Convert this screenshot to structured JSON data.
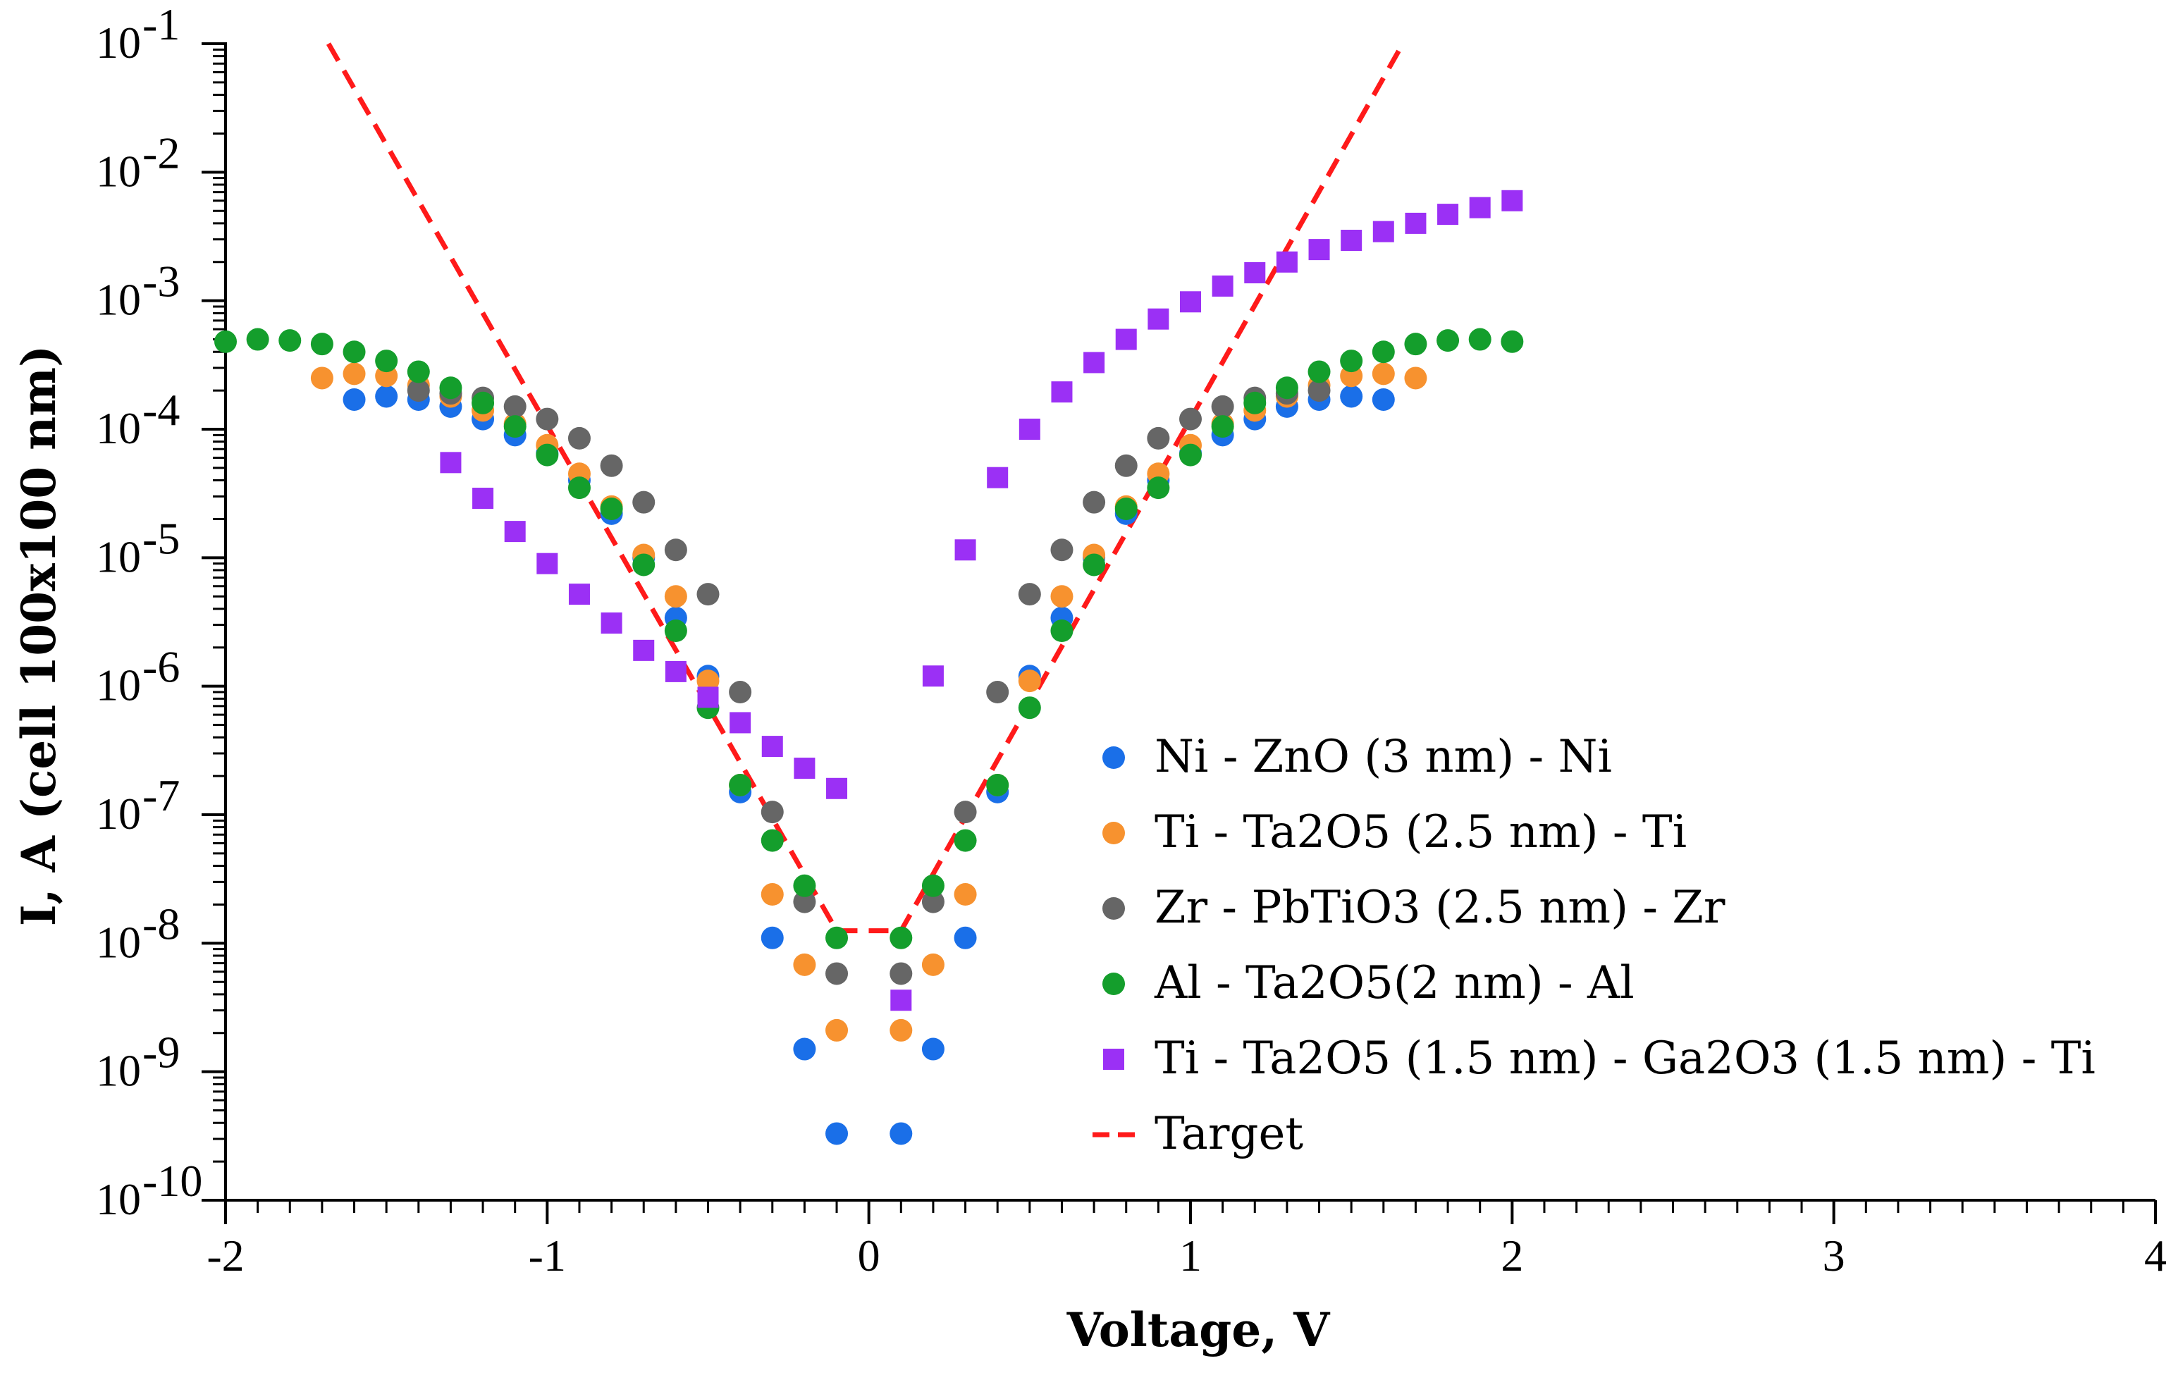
{
  "chart_data": {
    "type": "scatter",
    "title": "",
    "xlabel": "Voltage, V",
    "ylabel": "I, A (cell 100x100 nm)",
    "xlim": [
      -2,
      4
    ],
    "ylim": [
      1e-10,
      0.1
    ],
    "yscale": "log",
    "x_ticks": [
      "-2",
      "-1",
      "0",
      "1",
      "2",
      "3",
      "4"
    ],
    "y_ticks": [
      {
        "base": "10",
        "exp": "-10"
      },
      {
        "base": "10",
        "exp": "-9"
      },
      {
        "base": "10",
        "exp": "-8"
      },
      {
        "base": "10",
        "exp": "-7"
      },
      {
        "base": "10",
        "exp": "-6"
      },
      {
        "base": "10",
        "exp": "-5"
      },
      {
        "base": "10",
        "exp": "-4"
      },
      {
        "base": "10",
        "exp": "-3"
      },
      {
        "base": "10",
        "exp": "-2"
      },
      {
        "base": "10",
        "exp": "-1"
      }
    ],
    "legend_position": "bottom-right",
    "series": [
      {
        "name": "Ni - ZnO (3 nm) - Ni",
        "marker": "circle",
        "color": "#1a6fe8",
        "x": [
          -1.6,
          -1.5,
          -1.4,
          -1.3,
          -1.2,
          -1.1,
          -1.0,
          -0.9,
          -0.8,
          -0.7,
          -0.6,
          -0.5,
          -0.4,
          -0.3,
          -0.2,
          -0.1,
          0.1,
          0.2,
          0.3,
          0.4,
          0.5,
          0.6,
          0.7,
          0.8,
          0.9,
          1.0,
          1.1,
          1.2,
          1.3,
          1.4,
          1.5,
          1.6
        ],
        "y": [
          0.00017,
          0.00018,
          0.00017,
          0.00015,
          0.00012,
          9e-05,
          6.5e-05,
          4e-05,
          2.2e-05,
          1e-05,
          3.4e-06,
          1.2e-06,
          1.5e-07,
          1.1e-08,
          1.5e-09,
          3.3e-10,
          3.3e-10,
          1.5e-09,
          1.1e-08,
          1.5e-07,
          1.2e-06,
          3.4e-06,
          1e-05,
          2.2e-05,
          4e-05,
          6.5e-05,
          9e-05,
          0.00012,
          0.00015,
          0.00017,
          0.00018,
          0.00017
        ]
      },
      {
        "name": "Ti - Ta2O5 (2.5 nm) - Ti",
        "marker": "circle",
        "color": "#f7922f",
        "x": [
          -1.7,
          -1.6,
          -1.5,
          -1.4,
          -1.3,
          -1.2,
          -1.1,
          -1.0,
          -0.9,
          -0.8,
          -0.7,
          -0.6,
          -0.5,
          -0.4,
          -0.3,
          -0.2,
          -0.1,
          0.1,
          0.2,
          0.3,
          0.4,
          0.5,
          0.6,
          0.7,
          0.8,
          0.9,
          1.0,
          1.1,
          1.2,
          1.3,
          1.4,
          1.5,
          1.6,
          1.7
        ],
        "y": [
          0.00025,
          0.00027,
          0.00026,
          0.00022,
          0.00018,
          0.00014,
          0.00011,
          7.5e-05,
          4.5e-05,
          2.5e-05,
          1.05e-05,
          5e-06,
          1.1e-06,
          1.7e-07,
          2.4e-08,
          6.8e-09,
          2.1e-09,
          2.1e-09,
          6.8e-09,
          2.4e-08,
          1.7e-07,
          1.1e-06,
          5e-06,
          1.05e-05,
          2.5e-05,
          4.5e-05,
          7.5e-05,
          0.00011,
          0.00014,
          0.00018,
          0.00022,
          0.00026,
          0.00027,
          0.00025
        ]
      },
      {
        "name": "Zr - PbTiO3 (2.5 nm) - Zr",
        "marker": "circle",
        "color": "#666666",
        "x": [
          -1.4,
          -1.3,
          -1.2,
          -1.1,
          -1.0,
          -0.9,
          -0.8,
          -0.7,
          -0.6,
          -0.5,
          -0.4,
          -0.3,
          -0.2,
          -0.1,
          0.1,
          0.2,
          0.3,
          0.4,
          0.5,
          0.6,
          0.7,
          0.8,
          0.9,
          1.0,
          1.1,
          1.2,
          1.3,
          1.4
        ],
        "y": [
          0.0002,
          0.00019,
          0.000175,
          0.00015,
          0.00012,
          8.5e-05,
          5.2e-05,
          2.7e-05,
          1.15e-05,
          5.2e-06,
          9e-07,
          1.05e-07,
          2.1e-08,
          5.8e-09,
          5.8e-09,
          2.1e-08,
          1.05e-07,
          9e-07,
          5.2e-06,
          1.15e-05,
          2.7e-05,
          5.2e-05,
          8.5e-05,
          0.00012,
          0.00015,
          0.000175,
          0.00019,
          0.0002
        ]
      },
      {
        "name": "Al - Ta2O5(2 nm) - Al",
        "marker": "circle",
        "color": "#149e2c",
        "x": [
          -2.0,
          -1.9,
          -1.8,
          -1.7,
          -1.6,
          -1.5,
          -1.4,
          -1.3,
          -1.2,
          -1.1,
          -1.0,
          -0.9,
          -0.8,
          -0.7,
          -0.6,
          -0.5,
          -0.4,
          -0.3,
          -0.2,
          -0.1,
          0.1,
          0.2,
          0.3,
          0.4,
          0.5,
          0.6,
          0.7,
          0.8,
          0.9,
          1.0,
          1.1,
          1.2,
          1.3,
          1.4,
          1.5,
          1.6,
          1.7,
          1.8,
          1.9,
          2.0
        ],
        "y": [
          0.00048,
          0.0005,
          0.00049,
          0.00046,
          0.0004,
          0.00034,
          0.00028,
          0.00021,
          0.00016,
          0.000105,
          6.3e-05,
          3.5e-05,
          2.4e-05,
          8.8e-06,
          2.7e-06,
          6.8e-07,
          1.7e-07,
          6.3e-08,
          2.8e-08,
          1.1e-08,
          1.1e-08,
          2.8e-08,
          6.3e-08,
          1.7e-07,
          6.8e-07,
          2.7e-06,
          8.8e-06,
          2.4e-05,
          3.5e-05,
          6.3e-05,
          0.000105,
          0.00016,
          0.00021,
          0.00028,
          0.00034,
          0.0004,
          0.00046,
          0.00049,
          0.0005,
          0.00048
        ]
      },
      {
        "name": "Ti - Ta2O5 (1.5 nm) - Ga2O3 (1.5 nm) - Ti",
        "marker": "square",
        "color": "#9b30f5",
        "x": [
          -1.3,
          -1.2,
          -1.1,
          -1.0,
          -0.9,
          -0.8,
          -0.7,
          -0.6,
          -0.5,
          -0.4,
          -0.3,
          -0.2,
          -0.1,
          0.1,
          0.2,
          0.3,
          0.4,
          0.5,
          0.6,
          0.7,
          0.8,
          0.9,
          1.0,
          1.1,
          1.2,
          1.3,
          1.4,
          1.5,
          1.6,
          1.7,
          1.8,
          1.9,
          2.0
        ],
        "y": [
          5.5e-05,
          2.9e-05,
          1.6e-05,
          9e-06,
          5.2e-06,
          3.1e-06,
          1.9e-06,
          1.3e-06,
          8.2e-07,
          5.2e-07,
          3.4e-07,
          2.3e-07,
          1.6e-07,
          3.6e-09,
          1.2e-06,
          1.15e-05,
          4.2e-05,
          0.0001,
          0.000195,
          0.00033,
          0.0005,
          0.00072,
          0.00098,
          0.0013,
          0.00165,
          0.002,
          0.0025,
          0.00295,
          0.00345,
          0.004,
          0.0047,
          0.0053,
          0.006
        ]
      },
      {
        "name": "Target",
        "marker": "dashed-line",
        "color": "#ff1a1a",
        "x": [
          -1.68,
          -0.1,
          0.1,
          1.66
        ],
        "y": [
          0.1,
          1.25e-08,
          1.25e-08,
          0.1
        ]
      }
    ]
  }
}
